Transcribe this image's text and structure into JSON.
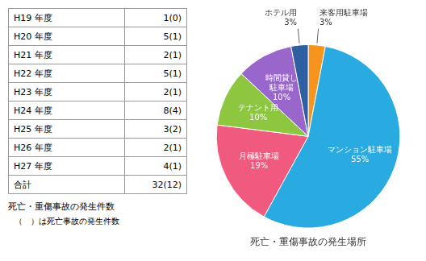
{
  "chart_data": [
    {
      "type": "table",
      "rows": [
        [
          "H19 年度",
          "1(0)"
        ],
        [
          "H20 年度",
          "5(1)"
        ],
        [
          "H21 年度",
          "2(1)"
        ],
        [
          "H22 年度",
          "5(1)"
        ],
        [
          "H23 年度",
          "2(1)"
        ],
        [
          "H24 年度",
          "8(4)"
        ],
        [
          "H25 年度",
          "3(2)"
        ],
        [
          "H26 年度",
          "2(1)"
        ],
        [
          "H27 年度",
          "4(1)"
        ],
        [
          "合計",
          "32(12)"
        ]
      ],
      "annotations": [
        "死亡・重傷事故の発生件数",
        "（　）は死亡事故の発生件数"
      ]
    },
    {
      "type": "pie",
      "title": "死亡・重傷事故の発生場所",
      "categories": [
        "来客用駐車場",
        "マンション駐車場",
        "月極駐車場",
        "テナント用",
        "時間貸し\n駐車場",
        "ホテル用"
      ],
      "values": [
        3,
        55,
        19,
        10,
        10,
        3
      ],
      "value_labels": [
        "3%",
        "55%",
        "19%",
        "10%",
        "10%",
        "3%"
      ],
      "colors": [
        "#F7941D",
        "#29ABE2",
        "#F15A7F",
        "#8DC63F",
        "#9966CC",
        "#2E5FA3"
      ],
      "data_labels": true,
      "legend": false
    }
  ]
}
